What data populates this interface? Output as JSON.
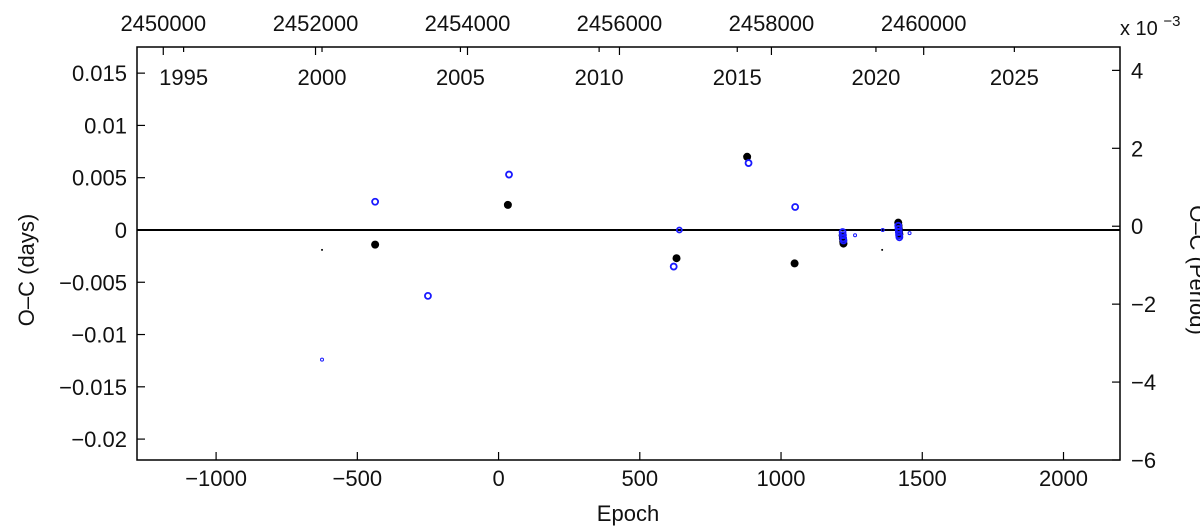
{
  "chart_data": {
    "type": "scatter",
    "xlabel": "Epoch",
    "ylabel": "O–C (days)",
    "y2label": "O–C (Period)",
    "xlim": [
      -1280,
      2200
    ],
    "ylim": [
      -0.022,
      0.0175
    ],
    "y2lim": [
      -6,
      4.6
    ],
    "y2_scale_text": "x 10",
    "y2_scale_exponent": "−3",
    "grid": false,
    "zero_line": true,
    "x_ticks": [
      {
        "value": -1000,
        "label": "−1000"
      },
      {
        "value": -500,
        "label": "−500"
      },
      {
        "value": 0,
        "label": "0"
      },
      {
        "value": 500,
        "label": "500"
      },
      {
        "value": 1000,
        "label": "1000"
      },
      {
        "value": 1500,
        "label": "1500"
      },
      {
        "value": 2000,
        "label": "2000"
      }
    ],
    "y_ticks": [
      {
        "value": 0.015,
        "label": "0.015"
      },
      {
        "value": 0.01,
        "label": "0.01"
      },
      {
        "value": 0.005,
        "label": "0.005"
      },
      {
        "value": 0,
        "label": "0"
      },
      {
        "value": -0.005,
        "label": "−0.005"
      },
      {
        "value": -0.01,
        "label": "−0.01"
      },
      {
        "value": -0.015,
        "label": "−0.015"
      },
      {
        "value": -0.02,
        "label": "−0.02"
      }
    ],
    "y2_ticks": [
      {
        "value": 4,
        "label": "4"
      },
      {
        "value": 2,
        "label": "2"
      },
      {
        "value": 0,
        "label": "0"
      },
      {
        "value": -2,
        "label": "−2"
      },
      {
        "value": -4,
        "label": "−4"
      },
      {
        "value": -6,
        "label": "−6"
      }
    ],
    "top_jd_ticks": [
      {
        "epoch": -1187,
        "label": "2450000"
      },
      {
        "epoch": -648,
        "label": "2452000"
      },
      {
        "epoch": -110,
        "label": "2454000"
      },
      {
        "epoch": 428,
        "label": "2456000"
      },
      {
        "epoch": 966,
        "label": "2458000"
      },
      {
        "epoch": 1505,
        "label": "2460000"
      }
    ],
    "year_ticks": [
      {
        "epoch": -1115,
        "label": "1995"
      },
      {
        "epoch": -625,
        "label": "2000"
      },
      {
        "epoch": -135,
        "label": "2005"
      },
      {
        "epoch": 356,
        "label": "2010"
      },
      {
        "epoch": 845,
        "label": "2015"
      },
      {
        "epoch": 1336,
        "label": "2020"
      },
      {
        "epoch": 1826,
        "label": "2025"
      }
    ],
    "colors": {
      "primary": "#000000",
      "secondary": "#1a1aff"
    },
    "series": [
      {
        "points": [
          {
            "x": -625,
            "y": -0.0019,
            "size": 2
          },
          {
            "x": -437,
            "y": -0.0014,
            "size": 8
          },
          {
            "x": 33,
            "y": 0.0024,
            "size": 8
          },
          {
            "x": 630,
            "y": -0.0027,
            "size": 8
          },
          {
            "x": 880,
            "y": 0.007,
            "size": 8
          },
          {
            "x": 1048,
            "y": -0.0032,
            "size": 8
          },
          {
            "x": 1218,
            "y": -0.0005,
            "size": 8
          },
          {
            "x": 1219,
            "y": -0.0008,
            "size": 8
          },
          {
            "x": 1220,
            "y": -0.0011,
            "size": 8
          },
          {
            "x": 1221,
            "y": -0.0013,
            "size": 8
          },
          {
            "x": 1358,
            "y": -0.0019,
            "size": 2
          },
          {
            "x": 1415,
            "y": 0.0007,
            "size": 8
          },
          {
            "x": 1416,
            "y": 0.0004,
            "size": 8
          },
          {
            "x": 1417,
            "y": 0.0001,
            "size": 8
          },
          {
            "x": 1418,
            "y": -0.0002,
            "size": 8
          },
          {
            "x": 1419,
            "y": -0.0004,
            "size": 8
          }
        ]
      },
      {
        "points": [
          {
            "x": -625,
            "y": -0.0124,
            "size": 3,
            "filled": false
          },
          {
            "x": -437,
            "y": 0.0027,
            "size": 6,
            "filled": false
          },
          {
            "x": -250,
            "y": -0.0063,
            "size": 6,
            "filled": false
          },
          {
            "x": 37,
            "y": 0.0053,
            "size": 6,
            "filled": false
          },
          {
            "x": 620,
            "y": -0.0035,
            "size": 6,
            "filled": false
          },
          {
            "x": 640,
            "y": 0.0,
            "size": 5,
            "filled": false
          },
          {
            "x": 885,
            "y": 0.0064,
            "size": 6,
            "filled": false
          },
          {
            "x": 1050,
            "y": 0.0022,
            "size": 6,
            "filled": false
          },
          {
            "x": 1218,
            "y": -0.0002,
            "size": 6,
            "filled": false
          },
          {
            "x": 1219,
            "y": -0.0005,
            "size": 6,
            "filled": false
          },
          {
            "x": 1220,
            "y": -0.0008,
            "size": 6,
            "filled": false
          },
          {
            "x": 1221,
            "y": -0.001,
            "size": 6,
            "filled": false
          },
          {
            "x": 1262,
            "y": -0.0005,
            "size": 3,
            "filled": false
          },
          {
            "x": 1360,
            "y": 0.0,
            "size": 3,
            "filled": false
          },
          {
            "x": 1415,
            "y": 0.0004,
            "size": 6,
            "filled": false
          },
          {
            "x": 1416,
            "y": 0.0001,
            "size": 6,
            "filled": false
          },
          {
            "x": 1417,
            "y": -0.0002,
            "size": 6,
            "filled": false
          },
          {
            "x": 1418,
            "y": -0.0005,
            "size": 6,
            "filled": false
          },
          {
            "x": 1419,
            "y": -0.0007,
            "size": 6,
            "filled": false
          },
          {
            "x": 1455,
            "y": -0.0003,
            "size": 3,
            "filled": false
          }
        ]
      }
    ]
  }
}
